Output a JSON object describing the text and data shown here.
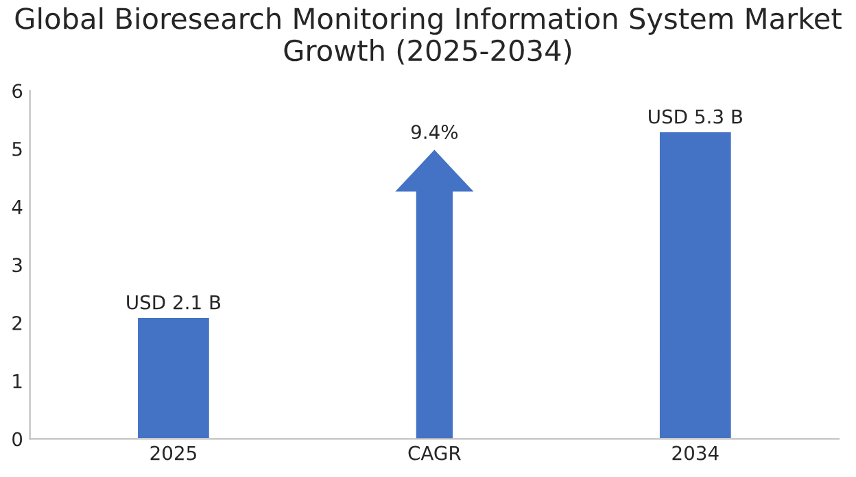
{
  "chart_data": {
    "type": "bar",
    "title": "Global Bioresearch Monitoring Information System Market Growth (2025-2034)",
    "categories": [
      "2025",
      "CAGR",
      "2034"
    ],
    "values": [
      2.1,
      null,
      5.3
    ],
    "value_labels": [
      "USD 2.1 B",
      null,
      "USD 5.3 B"
    ],
    "color": "#4472c4",
    "annotations": [
      "9.4%"
    ],
    "ylim": [
      0,
      6
    ],
    "yticks": [
      0,
      1,
      2,
      3,
      4,
      5,
      6
    ],
    "grid": false
  }
}
